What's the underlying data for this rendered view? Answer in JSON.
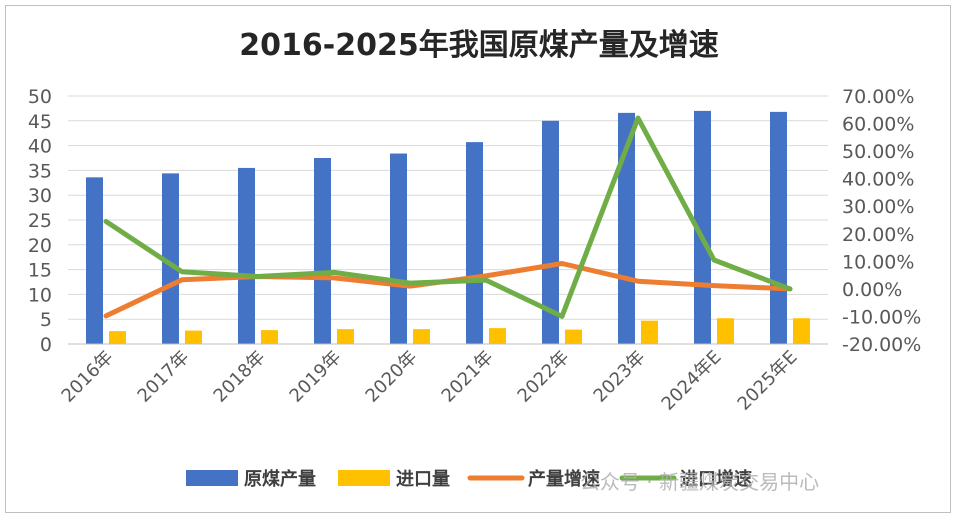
{
  "chart_data": {
    "type": "bar",
    "title": "2016-2025年我国原煤产量及增速",
    "categories": [
      "2016年",
      "2017年",
      "2018年",
      "2019年",
      "2020年",
      "2021年",
      "2022年",
      "2023年",
      "2024年E",
      "2025年E"
    ],
    "series": [
      {
        "name": "原煤产量",
        "type": "bar",
        "axis": "left",
        "color": "#4472c4",
        "values": [
          33.6,
          34.4,
          35.5,
          37.5,
          38.4,
          40.7,
          45.0,
          46.6,
          47.0,
          46.8
        ]
      },
      {
        "name": "进口量",
        "type": "bar",
        "axis": "left",
        "color": "#ffc000",
        "values": [
          2.6,
          2.7,
          2.8,
          3.0,
          3.0,
          3.2,
          2.9,
          4.7,
          5.2,
          5.2
        ]
      },
      {
        "name": "产量增速",
        "type": "line",
        "axis": "right",
        "color": "#ed7d31",
        "values": [
          -9.8,
          3.3,
          4.5,
          4.0,
          1.0,
          4.7,
          9.2,
          2.8,
          1.2,
          0.0
        ]
      },
      {
        "name": "进口增速",
        "type": "line",
        "axis": "right",
        "color": "#70ad47",
        "values": [
          24.5,
          6.2,
          4.5,
          6.0,
          2.1,
          3.2,
          -10.0,
          62.0,
          10.5,
          0.0
        ]
      }
    ],
    "y_left": {
      "min": 0,
      "max": 50,
      "step": 5,
      "ticks": [
        "0",
        "5",
        "10",
        "15",
        "20",
        "25",
        "30",
        "35",
        "40",
        "45",
        "50"
      ]
    },
    "y_right": {
      "min": -20,
      "max": 70,
      "step": 10,
      "ticks": [
        "-20.00%",
        "-10.00%",
        "0.00%",
        "10.00%",
        "20.00%",
        "30.00%",
        "40.00%",
        "50.00%",
        "60.00%",
        "70.00%"
      ]
    },
    "grid": true,
    "legend_position": "bottom"
  },
  "watermark": "公众号 · 新疆煤炭交易中心"
}
